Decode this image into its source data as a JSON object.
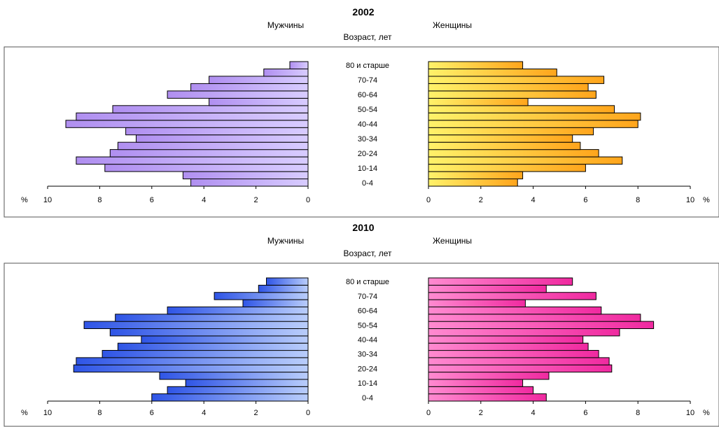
{
  "chart_data": [
    {
      "type": "bar",
      "title": "2002",
      "left_label": "Мужчины",
      "right_label": "Женщины",
      "center_label": "Возраст, лет",
      "unit_label": "%",
      "age_labels": [
        "80 и старше",
        "70-74",
        "60-64",
        "50-54",
        "40-44",
        "30-34",
        "20-24",
        "10-14",
        "0-4"
      ],
      "xlim": [
        0,
        10
      ],
      "ticks": [
        "0",
        "2",
        "4",
        "6",
        "8",
        "10"
      ],
      "series": [
        {
          "side": "left",
          "color": "#b79cf0",
          "values": [
            4.5,
            4.8,
            7.8,
            8.9,
            7.6,
            7.3,
            6.6,
            7.0,
            9.3,
            8.9,
            7.5,
            3.8,
            5.4,
            4.5,
            3.8,
            1.7,
            0.7
          ]
        },
        {
          "side": "right",
          "color": "#ffd83a",
          "values": [
            3.4,
            3.6,
            6.0,
            7.4,
            6.5,
            5.8,
            5.5,
            6.3,
            8.0,
            8.1,
            7.1,
            3.8,
            6.4,
            6.1,
            6.7,
            4.9,
            3.6
          ]
        }
      ]
    },
    {
      "type": "bar",
      "title": "2010",
      "left_label": "Мужчины",
      "right_label": "Женщины",
      "center_label": "Возраст, лет",
      "unit_label": "%",
      "age_labels": [
        "80 и старше",
        "70-74",
        "60-64",
        "50-54",
        "40-44",
        "30-34",
        "20-24",
        "10-14",
        "0-4"
      ],
      "xlim": [
        0,
        10
      ],
      "ticks": [
        "0",
        "2",
        "4",
        "6",
        "8",
        "10"
      ],
      "series": [
        {
          "side": "left",
          "color": "#4d72ee",
          "values": [
            6.0,
            5.4,
            4.7,
            5.7,
            9.0,
            8.9,
            7.9,
            7.3,
            6.4,
            7.6,
            8.6,
            7.4,
            5.4,
            2.5,
            3.6,
            1.9,
            1.6
          ]
        },
        {
          "side": "right",
          "color": "#ff70bf",
          "values": [
            4.5,
            4.0,
            3.6,
            4.6,
            7.0,
            6.9,
            6.5,
            6.1,
            5.9,
            7.3,
            8.6,
            8.1,
            6.6,
            3.7,
            6.4,
            4.5,
            5.5
          ]
        }
      ]
    }
  ]
}
